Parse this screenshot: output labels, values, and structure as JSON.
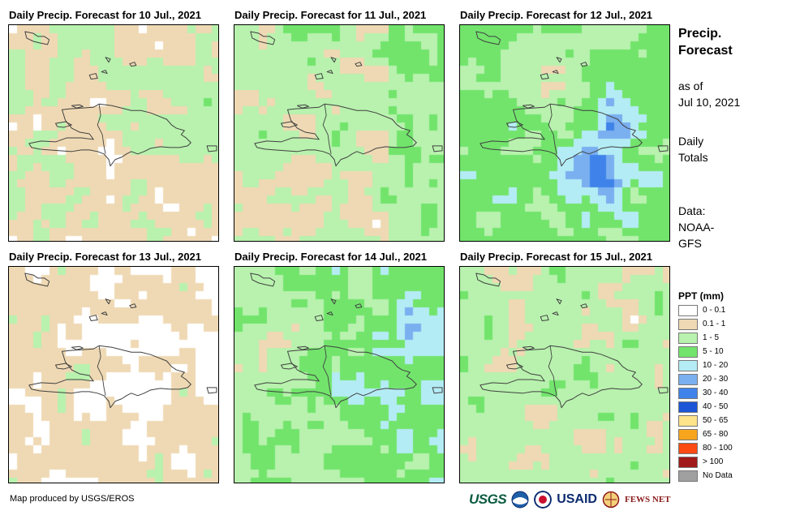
{
  "panels": [
    {
      "title": "Daily Precip. Forecast for 10 Jul., 2021",
      "day": 0
    },
    {
      "title": "Daily Precip. Forecast for 11 Jul., 2021",
      "day": 1
    },
    {
      "title": "Daily Precip. Forecast for 12 Jul., 2021",
      "day": 2
    },
    {
      "title": "Daily Precip. Forecast for 13 Jul., 2021",
      "day": 3
    },
    {
      "title": "Daily Precip. Forecast for 14 Jul., 2021",
      "day": 4
    },
    {
      "title": "Daily Precip. Forecast for 15 Jul., 2021",
      "day": 5
    }
  ],
  "side": {
    "title_line1": "Precip.",
    "title_line2": "Forecast",
    "asof_line1": "as of",
    "asof_line2": "Jul 10, 2021",
    "totals_line1": "Daily",
    "totals_line2": "Totals",
    "data_line1": "Data:",
    "data_line2": "NOAA-",
    "data_line3": "GFS"
  },
  "legend": {
    "title": "PPT (mm)",
    "items": [
      {
        "label": "0 - 0.1",
        "color": "#ffffff"
      },
      {
        "label": "0.1 - 1",
        "color": "#efd9b4"
      },
      {
        "label": "1 - 5",
        "color": "#b8f2ae"
      },
      {
        "label": "5 - 10",
        "color": "#72e46c"
      },
      {
        "label": "10 - 20",
        "color": "#b4ecf5"
      },
      {
        "label": "20 - 30",
        "color": "#7aaff0"
      },
      {
        "label": "30 - 40",
        "color": "#3f83ea"
      },
      {
        "label": "40 - 50",
        "color": "#1c55d6"
      },
      {
        "label": "50 - 65",
        "color": "#fde48a"
      },
      {
        "label": "65 - 80",
        "color": "#f8a51e"
      },
      {
        "label": "80 - 100",
        "color": "#fb4a12"
      },
      {
        "label": "> 100",
        "color": "#a11a1a"
      },
      {
        "label": "No Data",
        "color": "#a0a0a0"
      }
    ]
  },
  "footer": {
    "credit": "Map produced by USGS/EROS"
  },
  "logos": {
    "usgs": "USGS",
    "usaid": "USAID",
    "fews": "FEWS NET"
  }
}
